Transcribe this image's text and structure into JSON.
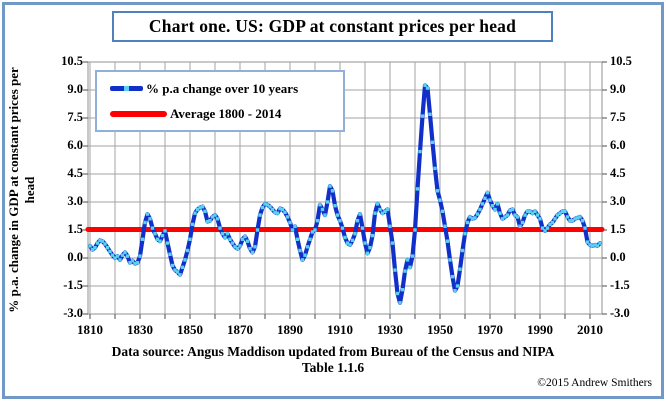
{
  "title": "Chart one. US: GDP at constant prices per head",
  "legend": {
    "items": [
      {
        "label": "% p.a change over 10 years",
        "swatch": "blue-line-with-marker"
      },
      {
        "label": "Average 1800 - 2014",
        "swatch": "red-line"
      }
    ]
  },
  "y_axis": {
    "title_line1": "% p.a. change in GDP at constant prices per",
    "title_line2": "head",
    "tick_labels_top_to_bottom": [
      "10.5",
      "9.0",
      "7.5",
      "6.0",
      "4.5",
      "3.0",
      "1.5",
      "0.0",
      "-1.5",
      "-3.0"
    ]
  },
  "x_axis": {
    "tick_labels": [
      "1810",
      "1830",
      "1850",
      "1870",
      "1890",
      "1910",
      "1930",
      "1950",
      "1970",
      "1990",
      "2010"
    ]
  },
  "footer": {
    "line1": "Data source:  Angus Maddison updated from Bureau of the Census and NIPA",
    "line2": "Table 1.1.6"
  },
  "copyright": "©2015 Andrew Smithers",
  "colors": {
    "frame_border": "#7099c8",
    "title_border": "#4f81bd",
    "legend_border": "#8eb0d9",
    "series_line": "#1130c9",
    "series_marker": "#5cd0f0",
    "average_line": "#ff0000",
    "gridline": "#a3a3a3",
    "tick": "#6b6b6b",
    "background": "#ffffff",
    "text": "#000000"
  },
  "chart_data": {
    "type": "line",
    "title": "Chart one. US: GDP at constant prices per head",
    "xlabel": "",
    "ylabel": "% p.a. change in GDP at constant prices per head",
    "x_start": 1810,
    "x_end": 2014,
    "ylim": [
      -3.0,
      10.5
    ],
    "y_tick_step": 1.5,
    "x_gridline_step": 10,
    "x_label_step": 20,
    "grid": true,
    "legend_position": "top-left",
    "series": [
      {
        "name": "% p.a change over 10 years",
        "color": "#1130c9",
        "marker": "square",
        "marker_color": "#5cd0f0",
        "values": [
          0.65,
          0.45,
          0.55,
          0.8,
          0.95,
          0.9,
          0.75,
          0.55,
          0.35,
          0.15,
          0.0,
          0.1,
          -0.1,
          0.15,
          0.3,
          0.1,
          -0.25,
          -0.15,
          -0.3,
          -0.25,
          0.1,
          1.0,
          1.9,
          2.35,
          2.1,
          1.6,
          1.3,
          1.0,
          0.9,
          1.2,
          1.45,
          0.8,
          0.2,
          -0.4,
          -0.65,
          -0.75,
          -0.9,
          -0.5,
          -0.1,
          0.4,
          1.0,
          1.8,
          2.4,
          2.6,
          2.7,
          2.75,
          2.5,
          1.95,
          2.0,
          2.2,
          2.3,
          2.1,
          1.6,
          1.3,
          1.1,
          1.3,
          1.0,
          0.8,
          0.6,
          0.5,
          0.65,
          1.0,
          1.15,
          0.9,
          0.5,
          0.3,
          0.6,
          1.5,
          2.3,
          2.7,
          2.9,
          2.85,
          2.75,
          2.6,
          2.45,
          2.4,
          2.65,
          2.6,
          2.45,
          2.2,
          1.9,
          1.5,
          1.7,
          1.0,
          0.4,
          -0.1,
          0.15,
          0.6,
          1.0,
          1.4,
          1.5,
          2.0,
          2.85,
          2.6,
          2.3,
          3.0,
          3.85,
          3.6,
          2.8,
          2.3,
          2.0,
          1.6,
          1.1,
          0.8,
          0.7,
          0.95,
          1.3,
          2.0,
          2.35,
          1.6,
          0.8,
          0.25,
          0.55,
          1.2,
          2.4,
          2.9,
          2.6,
          2.4,
          2.5,
          2.6,
          1.7,
          0.8,
          -0.65,
          -1.9,
          -2.4,
          -1.7,
          -0.7,
          -0.1,
          -0.5,
          0.1,
          1.5,
          3.7,
          5.7,
          7.6,
          9.25,
          9.1,
          7.7,
          6.2,
          4.8,
          3.6,
          3.1,
          2.5,
          1.7,
          0.9,
          -0.1,
          -1.0,
          -1.75,
          -1.5,
          -0.6,
          0.4,
          1.3,
          1.9,
          2.2,
          2.1,
          2.15,
          2.35,
          2.6,
          2.9,
          3.2,
          3.5,
          3.1,
          2.8,
          2.6,
          2.9,
          2.4,
          2.1,
          2.2,
          2.3,
          2.55,
          2.6,
          2.3,
          2.2,
          1.7,
          1.9,
          2.3,
          2.5,
          2.5,
          2.4,
          2.5,
          2.3,
          2.1,
          1.6,
          1.45,
          1.6,
          1.8,
          1.9,
          2.1,
          2.3,
          2.4,
          2.5,
          2.5,
          2.2,
          2.0,
          2.0,
          2.1,
          2.15,
          2.2,
          2.0,
          1.6,
          0.85,
          0.7,
          0.65,
          0.7,
          0.65,
          0.8
        ]
      },
      {
        "name": "Average 1800 - 2014",
        "color": "#ff0000",
        "average_value": 1.53
      }
    ]
  }
}
